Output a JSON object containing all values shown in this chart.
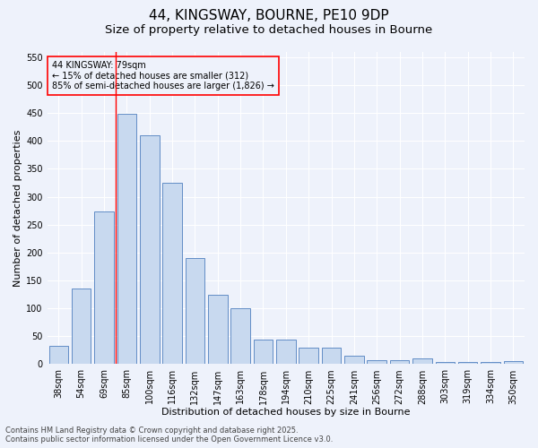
{
  "title1": "44, KINGSWAY, BOURNE, PE10 9DP",
  "title2": "Size of property relative to detached houses in Bourne",
  "xlabel": "Distribution of detached houses by size in Bourne",
  "ylabel": "Number of detached properties",
  "categories": [
    "38sqm",
    "54sqm",
    "69sqm",
    "85sqm",
    "100sqm",
    "116sqm",
    "132sqm",
    "147sqm",
    "163sqm",
    "178sqm",
    "194sqm",
    "210sqm",
    "225sqm",
    "241sqm",
    "256sqm",
    "272sqm",
    "288sqm",
    "303sqm",
    "319sqm",
    "334sqm",
    "350sqm"
  ],
  "values": [
    33,
    135,
    273,
    449,
    410,
    325,
    190,
    124,
    101,
    44,
    44,
    30,
    30,
    16,
    7,
    7,
    10,
    4,
    4,
    4,
    6
  ],
  "bar_color": "#c8d9ef",
  "bar_edge_color": "#4f7fbf",
  "vline_x": 2.5,
  "vline_color": "red",
  "annotation_box_text": "44 KINGSWAY: 79sqm\n← 15% of detached houses are smaller (312)\n85% of semi-detached houses are larger (1,826) →",
  "annotation_box_edge": "red",
  "ylim": [
    0,
    560
  ],
  "yticks": [
    0,
    50,
    100,
    150,
    200,
    250,
    300,
    350,
    400,
    450,
    500,
    550
  ],
  "footer_line1": "Contains HM Land Registry data © Crown copyright and database right 2025.",
  "footer_line2": "Contains public sector information licensed under the Open Government Licence v3.0.",
  "background_color": "#eef2fb",
  "grid_color": "#ffffff",
  "title_fontsize": 11,
  "subtitle_fontsize": 9.5,
  "axis_label_fontsize": 8,
  "tick_fontsize": 7,
  "annotation_fontsize": 7,
  "footer_fontsize": 6
}
